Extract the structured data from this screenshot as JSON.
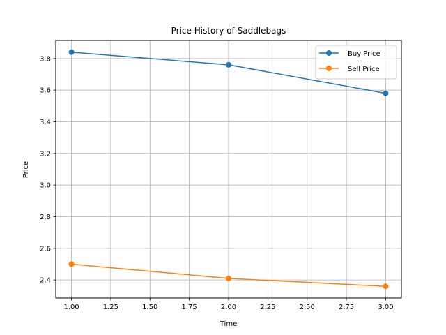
{
  "chart_data": {
    "type": "line",
    "title": "Price History of Saddlebags",
    "xlabel": "Time",
    "ylabel": "Price",
    "x": [
      1.0,
      2.0,
      3.0
    ],
    "series": [
      {
        "name": "Buy Price",
        "values": [
          3.84,
          3.76,
          3.58
        ],
        "color": "#1f77b4"
      },
      {
        "name": "Sell Price",
        "values": [
          2.5,
          2.41,
          2.36
        ],
        "color": "#ff7f0e"
      }
    ],
    "xlim": [
      0.9,
      3.1
    ],
    "ylim": [
      2.286,
      3.914
    ],
    "xticks": [
      "1.00",
      "1.25",
      "1.50",
      "1.75",
      "2.00",
      "2.25",
      "2.50",
      "2.75",
      "3.00"
    ],
    "yticks": [
      "2.4",
      "2.6",
      "2.8",
      "3.0",
      "3.2",
      "3.4",
      "3.6",
      "3.8"
    ],
    "grid": true,
    "legend_position": "top-right",
    "marker": "circle"
  }
}
